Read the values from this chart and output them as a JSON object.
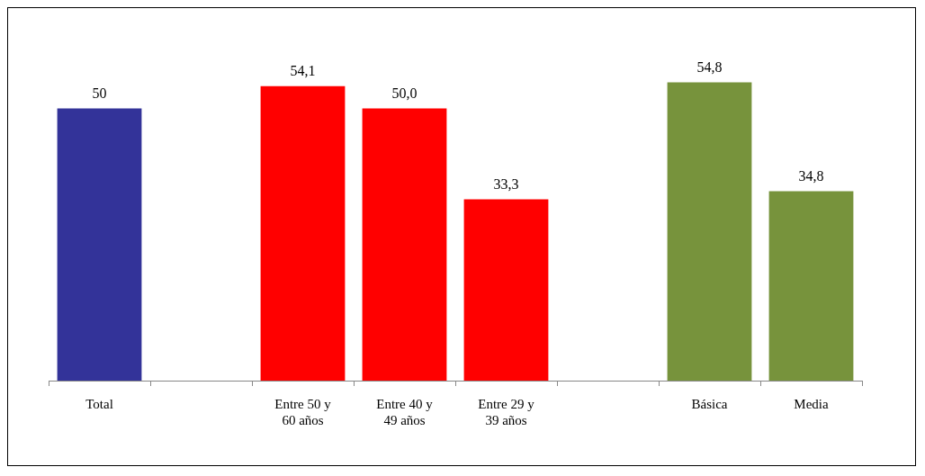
{
  "chart_data": {
    "type": "bar",
    "categories": [
      "Total",
      null,
      "Entre 50 y 60 años",
      "Entre 40 y 49 años",
      "Entre 29 y 39 años",
      null,
      "Básica",
      "Media"
    ],
    "values": [
      50,
      null,
      54.1,
      50.0,
      33.3,
      null,
      54.8,
      34.8
    ],
    "colors": [
      "#333399",
      "#ffffff",
      "#ff0000",
      "#ff0000",
      "#ff0000",
      "#ffffff",
      "#77933c",
      "#77933c"
    ],
    "value_labels": [
      "50",
      null,
      "54,1",
      "50,0",
      "33,3",
      null,
      "54,8",
      "34,8"
    ]
  }
}
